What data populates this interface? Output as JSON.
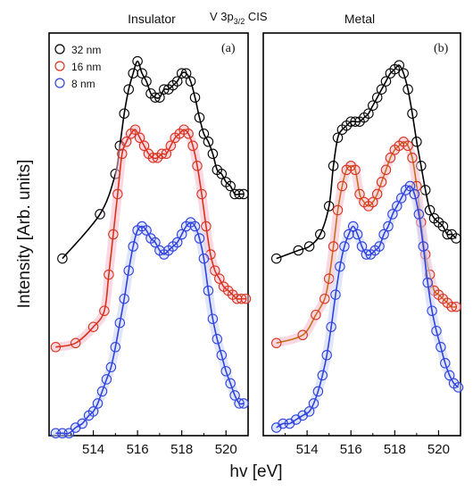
{
  "figure": {
    "title_main": "V 3p",
    "title_sub": "3/2",
    "title_end": " CIS",
    "ylabel": "Intensity [Arb. units]",
    "xlabel": "hv [eV]"
  },
  "colors": {
    "series_32": "#000000",
    "series_16": "#d9331f",
    "series_8": "#2f43e0",
    "fit_32": "#000000",
    "fit_16_left": "#d9331f",
    "fit_16_right": "#c8701e",
    "fit_8": "#2f43e0",
    "glow_16": "#f6b8c8",
    "glow_8": "#c9d0f6"
  },
  "chart_data": [
    {
      "type": "scatter",
      "panel_title": "Insulator",
      "panel_tag": "(a)",
      "xlim": [
        512,
        521
      ],
      "ylim": [
        0,
        1
      ],
      "xticks": [
        514,
        516,
        518,
        520
      ],
      "legend": {
        "placement": "top-left",
        "entries": [
          "32 nm",
          "16 nm",
          "8 nm"
        ]
      },
      "series": [
        {
          "name": "32 nm",
          "x": [
            512.6,
            514.3,
            515.0,
            515.2,
            515.4,
            515.6,
            515.8,
            516.0,
            516.2,
            516.4,
            516.6,
            516.8,
            517.0,
            517.2,
            517.4,
            517.6,
            517.8,
            518.0,
            518.2,
            518.4,
            518.6,
            518.8,
            519.0,
            519.2,
            519.4,
            519.6,
            519.8,
            520.0,
            520.2,
            520.4,
            520.6,
            520.8
          ],
          "y": [
            0.44,
            0.55,
            0.65,
            0.72,
            0.8,
            0.86,
            0.9,
            0.93,
            0.9,
            0.88,
            0.85,
            0.84,
            0.84,
            0.86,
            0.86,
            0.87,
            0.88,
            0.9,
            0.9,
            0.88,
            0.84,
            0.79,
            0.75,
            0.73,
            0.7,
            0.66,
            0.65,
            0.63,
            0.62,
            0.6,
            0.6,
            0.6
          ]
        },
        {
          "name": "16 nm",
          "x": [
            512.3,
            513.2,
            514.0,
            514.5,
            514.7,
            514.9,
            515.1,
            515.3,
            515.5,
            515.7,
            515.9,
            516.1,
            516.3,
            516.5,
            516.7,
            516.9,
            517.1,
            517.3,
            517.5,
            517.7,
            517.9,
            518.1,
            518.3,
            518.5,
            518.7,
            518.9,
            519.1,
            519.3,
            519.5,
            519.7,
            519.9,
            520.1,
            520.3,
            520.5,
            520.7,
            520.9
          ],
          "y": [
            0.22,
            0.23,
            0.27,
            0.31,
            0.4,
            0.5,
            0.6,
            0.7,
            0.73,
            0.75,
            0.76,
            0.74,
            0.72,
            0.7,
            0.69,
            0.69,
            0.7,
            0.7,
            0.72,
            0.74,
            0.75,
            0.76,
            0.75,
            0.72,
            0.67,
            0.6,
            0.52,
            0.45,
            0.41,
            0.39,
            0.37,
            0.36,
            0.35,
            0.34,
            0.34,
            0.34
          ]
        },
        {
          "name": "8 nm",
          "x": [
            512.3,
            512.6,
            512.9,
            513.2,
            513.5,
            513.8,
            514.0,
            514.2,
            514.4,
            514.6,
            514.8,
            515.0,
            515.2,
            515.4,
            515.6,
            515.8,
            516.0,
            516.2,
            516.4,
            516.6,
            516.8,
            517.0,
            517.2,
            517.4,
            517.6,
            517.8,
            518.0,
            518.2,
            518.4,
            518.6,
            518.8,
            519.0,
            519.2,
            519.4,
            519.6,
            519.8,
            520.0,
            520.2,
            520.4,
            520.6,
            520.8
          ],
          "y": [
            0.006,
            0.006,
            0.006,
            0.02,
            0.03,
            0.05,
            0.06,
            0.08,
            0.11,
            0.14,
            0.17,
            0.22,
            0.28,
            0.34,
            0.41,
            0.47,
            0.51,
            0.52,
            0.51,
            0.49,
            0.48,
            0.46,
            0.45,
            0.46,
            0.47,
            0.48,
            0.5,
            0.52,
            0.53,
            0.52,
            0.49,
            0.44,
            0.36,
            0.29,
            0.24,
            0.2,
            0.16,
            0.13,
            0.1,
            0.08,
            0.08
          ]
        }
      ]
    },
    {
      "type": "scatter",
      "panel_title": "Metal",
      "panel_tag": "(b)",
      "xlim": [
        512,
        521
      ],
      "ylim": [
        0,
        1
      ],
      "xticks": [
        514,
        516,
        518,
        520
      ],
      "series": [
        {
          "name": "32 nm",
          "x": [
            512.6,
            513.6,
            514.1,
            514.6,
            515.0,
            515.2,
            515.4,
            515.6,
            515.8,
            516.0,
            516.2,
            516.4,
            516.6,
            516.8,
            517.0,
            517.2,
            517.4,
            517.6,
            517.8,
            518.0,
            518.2,
            518.4,
            518.6,
            518.8,
            519.0,
            519.2,
            519.4,
            519.6,
            519.8,
            520.0,
            520.2,
            520.4,
            520.6,
            520.8
          ],
          "y": [
            0.44,
            0.46,
            0.47,
            0.5,
            0.57,
            0.67,
            0.74,
            0.76,
            0.77,
            0.78,
            0.78,
            0.78,
            0.79,
            0.8,
            0.82,
            0.84,
            0.86,
            0.88,
            0.9,
            0.91,
            0.92,
            0.9,
            0.86,
            0.8,
            0.73,
            0.67,
            0.61,
            0.56,
            0.54,
            0.53,
            0.52,
            0.5,
            0.5,
            0.49
          ]
        },
        {
          "name": "16 nm",
          "x": [
            512.6,
            513.8,
            514.4,
            514.8,
            515.0,
            515.2,
            515.4,
            515.6,
            515.8,
            516.0,
            516.2,
            516.4,
            516.6,
            516.8,
            517.0,
            517.2,
            517.4,
            517.6,
            517.8,
            518.0,
            518.2,
            518.4,
            518.6,
            518.8,
            519.0,
            519.2,
            519.4,
            519.6,
            519.8,
            520.0,
            520.2,
            520.4,
            520.6,
            520.8
          ],
          "y": [
            0.23,
            0.25,
            0.3,
            0.34,
            0.39,
            0.47,
            0.56,
            0.62,
            0.66,
            0.67,
            0.66,
            0.6,
            0.58,
            0.57,
            0.58,
            0.6,
            0.63,
            0.66,
            0.69,
            0.71,
            0.72,
            0.73,
            0.72,
            0.69,
            0.62,
            0.53,
            0.45,
            0.4,
            0.36,
            0.35,
            0.34,
            0.33,
            0.32,
            0.32
          ]
        },
        {
          "name": "8 nm",
          "x": [
            512.6,
            512.9,
            513.2,
            513.5,
            513.8,
            514.1,
            514.3,
            514.5,
            514.7,
            514.9,
            515.1,
            515.3,
            515.5,
            515.7,
            515.9,
            516.1,
            516.3,
            516.5,
            516.7,
            516.9,
            517.1,
            517.3,
            517.5,
            517.7,
            517.9,
            518.1,
            518.3,
            518.5,
            518.7,
            518.9,
            519.1,
            519.3,
            519.5,
            519.7,
            519.9,
            520.1,
            520.3,
            520.5,
            520.7,
            520.9
          ],
          "y": [
            0.02,
            0.03,
            0.03,
            0.04,
            0.05,
            0.06,
            0.08,
            0.11,
            0.15,
            0.2,
            0.27,
            0.35,
            0.42,
            0.47,
            0.5,
            0.52,
            0.5,
            0.47,
            0.45,
            0.45,
            0.46,
            0.47,
            0.5,
            0.52,
            0.55,
            0.57,
            0.59,
            0.61,
            0.62,
            0.6,
            0.55,
            0.47,
            0.38,
            0.31,
            0.26,
            0.22,
            0.18,
            0.15,
            0.13,
            0.12
          ]
        }
      ]
    }
  ]
}
